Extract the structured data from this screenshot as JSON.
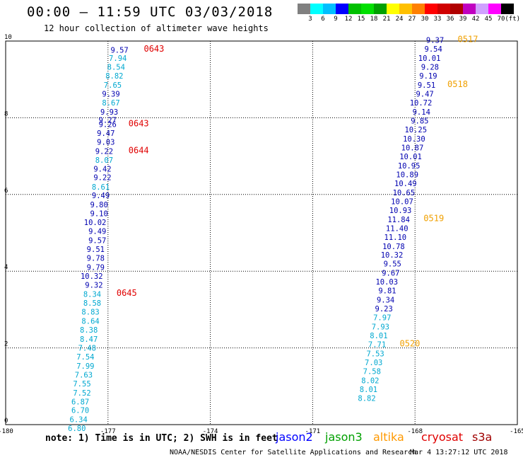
{
  "header": {
    "title": "00:00 — 11:59 UTC 03/03/2018",
    "subtitle": "12 hour collection of altimeter wave heights"
  },
  "colorbar": {
    "colors": [
      "#808080",
      "#00ffff",
      "#00bfff",
      "#0000ff",
      "#00c000",
      "#00e000",
      "#00a000",
      "#ffff00",
      "#ffc000",
      "#ff8000",
      "#ff0000",
      "#d00000",
      "#b00000",
      "#c000c0",
      "#d0a0ff",
      "#ff00ff",
      "#000000"
    ],
    "labels": [
      "3",
      "6",
      "9",
      "12",
      "15",
      "18",
      "21",
      "24",
      "27",
      "30",
      "33",
      "36",
      "39",
      "42",
      "45",
      "70"
    ],
    "unit": "(ft)"
  },
  "colors": {
    "dark_blue": "#0000b0",
    "light_blue": "#00a8d0",
    "time_red": "#e00000",
    "time_orange": "#f0a000"
  },
  "chart_data": {
    "type": "scatter",
    "title": "00:00 — 11:59 UTC 03/03/2018",
    "subtitle": "12 hour collection of altimeter wave heights",
    "xlim": [
      -180,
      -165
    ],
    "ylim": [
      0,
      10
    ],
    "x_ticks": [
      "-180",
      "-177",
      "-174",
      "-171",
      "-168",
      "-165"
    ],
    "y_ticks": [
      "0",
      "2",
      "4",
      "6",
      "8",
      "10"
    ],
    "grid": true,
    "tracks": [
      {
        "satellite": "jason2",
        "points": [
          {
            "lon": -176.4,
            "lat": 9.7,
            "value": "9.57",
            "band": "d"
          },
          {
            "lon": -176.45,
            "lat": 9.48,
            "value": "7.94",
            "band": "l"
          },
          {
            "lon": -176.5,
            "lat": 9.25,
            "value": "8.54",
            "band": "l"
          },
          {
            "lon": -176.55,
            "lat": 9.02,
            "value": "8.82",
            "band": "l"
          },
          {
            "lon": -176.6,
            "lat": 8.78,
            "value": "7.65",
            "band": "l"
          },
          {
            "lon": -176.65,
            "lat": 8.55,
            "value": "9.39",
            "band": "d"
          },
          {
            "lon": -176.65,
            "lat": 8.32,
            "value": "8.67",
            "band": "l"
          },
          {
            "lon": -176.7,
            "lat": 8.08,
            "value": "9.93",
            "band": "d"
          },
          {
            "lon": -176.75,
            "lat": 7.87,
            "value": "9.27",
            "band": "d"
          },
          {
            "lon": -176.75,
            "lat": 7.76,
            "value": "9.26",
            "band": "d"
          },
          {
            "lon": -176.8,
            "lat": 7.53,
            "value": "9.47",
            "band": "d"
          },
          {
            "lon": -176.8,
            "lat": 7.3,
            "value": "9.03",
            "band": "d"
          },
          {
            "lon": -176.85,
            "lat": 7.06,
            "value": "9.22",
            "band": "d"
          },
          {
            "lon": -176.85,
            "lat": 6.83,
            "value": "8.07",
            "band": "l"
          },
          {
            "lon": -176.9,
            "lat": 6.6,
            "value": "9.42",
            "band": "d"
          },
          {
            "lon": -176.9,
            "lat": 6.37,
            "value": "9.22",
            "band": "d"
          },
          {
            "lon": -176.95,
            "lat": 6.13,
            "value": "8.61",
            "band": "l"
          },
          {
            "lon": -176.95,
            "lat": 5.9,
            "value": "9.49",
            "band": "d"
          },
          {
            "lon": -177.0,
            "lat": 5.66,
            "value": "9.80",
            "band": "d"
          },
          {
            "lon": -177.0,
            "lat": 5.43,
            "value": "9.10",
            "band": "d"
          },
          {
            "lon": -177.05,
            "lat": 5.2,
            "value": "10.02",
            "band": "d"
          },
          {
            "lon": -177.05,
            "lat": 4.97,
            "value": "9.49",
            "band": "d"
          },
          {
            "lon": -177.05,
            "lat": 4.73,
            "value": "9.57",
            "band": "d"
          },
          {
            "lon": -177.1,
            "lat": 4.5,
            "value": "9.51",
            "band": "d"
          },
          {
            "lon": -177.1,
            "lat": 4.27,
            "value": "9.78",
            "band": "d"
          },
          {
            "lon": -177.1,
            "lat": 4.03,
            "value": "9.79",
            "band": "d"
          },
          {
            "lon": -177.15,
            "lat": 3.8,
            "value": "10.32",
            "band": "d"
          },
          {
            "lon": -177.15,
            "lat": 3.57,
            "value": "9.32",
            "band": "d"
          },
          {
            "lon": -177.2,
            "lat": 3.33,
            "value": "8.34",
            "band": "l"
          },
          {
            "lon": -177.2,
            "lat": 3.1,
            "value": "8.58",
            "band": "l"
          },
          {
            "lon": -177.25,
            "lat": 2.87,
            "value": "8.83",
            "band": "l"
          },
          {
            "lon": -177.25,
            "lat": 2.63,
            "value": "8.64",
            "band": "l"
          },
          {
            "lon": -177.3,
            "lat": 2.4,
            "value": "8.38",
            "band": "l"
          },
          {
            "lon": -177.3,
            "lat": 2.16,
            "value": "8.47",
            "band": "l"
          },
          {
            "lon": -177.35,
            "lat": 1.93,
            "value": "7.48",
            "band": "l"
          },
          {
            "lon": -177.4,
            "lat": 1.7,
            "value": "7.54",
            "band": "l"
          },
          {
            "lon": -177.4,
            "lat": 1.46,
            "value": "7.99",
            "band": "l"
          },
          {
            "lon": -177.45,
            "lat": 1.23,
            "value": "7.63",
            "band": "l"
          },
          {
            "lon": -177.5,
            "lat": 1.0,
            "value": "7.55",
            "band": "l"
          },
          {
            "lon": -177.5,
            "lat": 0.76,
            "value": "7.52",
            "band": "l"
          },
          {
            "lon": -177.55,
            "lat": 0.53,
            "value": "6.87",
            "band": "l"
          },
          {
            "lon": -177.55,
            "lat": 0.3,
            "value": "6.70",
            "band": "l"
          },
          {
            "lon": -177.6,
            "lat": 0.06,
            "value": "6.34",
            "band": "l"
          },
          {
            "lon": -177.65,
            "lat": -0.17,
            "value": "6.80",
            "band": "l"
          }
        ],
        "time_labels": [
          {
            "lon": -175.95,
            "lat": 9.72,
            "text": "0643"
          },
          {
            "lon": -176.4,
            "lat": 7.78,
            "text": "0643"
          },
          {
            "lon": -176.4,
            "lat": 7.08,
            "text": "0644"
          },
          {
            "lon": -176.75,
            "lat": 3.36,
            "text": "0645"
          }
        ]
      },
      {
        "satellite": "jason2",
        "points": [
          {
            "lon": -167.15,
            "lat": 9.95,
            "value": "9.37",
            "band": "d"
          },
          {
            "lon": -167.2,
            "lat": 9.72,
            "value": "9.54",
            "band": "d"
          },
          {
            "lon": -167.25,
            "lat": 9.48,
            "value": "10.01",
            "band": "d"
          },
          {
            "lon": -167.3,
            "lat": 9.25,
            "value": "9.28",
            "band": "d"
          },
          {
            "lon": -167.35,
            "lat": 9.02,
            "value": "9.19",
            "band": "d"
          },
          {
            "lon": -167.4,
            "lat": 8.78,
            "value": "9.51",
            "band": "d"
          },
          {
            "lon": -167.45,
            "lat": 8.55,
            "value": "9.47",
            "band": "d"
          },
          {
            "lon": -167.5,
            "lat": 8.32,
            "value": "10.72",
            "band": "d"
          },
          {
            "lon": -167.55,
            "lat": 8.08,
            "value": "9.14",
            "band": "d"
          },
          {
            "lon": -167.6,
            "lat": 7.85,
            "value": "9.85",
            "band": "d"
          },
          {
            "lon": -167.65,
            "lat": 7.62,
            "value": "10.25",
            "band": "d"
          },
          {
            "lon": -167.7,
            "lat": 7.38,
            "value": "10.30",
            "band": "d"
          },
          {
            "lon": -167.75,
            "lat": 7.15,
            "value": "10.87",
            "band": "d"
          },
          {
            "lon": -167.8,
            "lat": 6.92,
            "value": "10.01",
            "band": "d"
          },
          {
            "lon": -167.85,
            "lat": 6.68,
            "value": "10.95",
            "band": "d"
          },
          {
            "lon": -167.9,
            "lat": 6.45,
            "value": "10.89",
            "band": "d"
          },
          {
            "lon": -167.95,
            "lat": 6.22,
            "value": "10.49",
            "band": "d"
          },
          {
            "lon": -168.0,
            "lat": 5.98,
            "value": "10.65",
            "band": "d"
          },
          {
            "lon": -168.05,
            "lat": 5.75,
            "value": "10.07",
            "band": "d"
          },
          {
            "lon": -168.1,
            "lat": 5.52,
            "value": "10.93",
            "band": "d"
          },
          {
            "lon": -168.15,
            "lat": 5.28,
            "value": "11.84",
            "band": "d"
          },
          {
            "lon": -168.2,
            "lat": 5.05,
            "value": "11.40",
            "band": "d"
          },
          {
            "lon": -168.25,
            "lat": 4.82,
            "value": "11.10",
            "band": "d"
          },
          {
            "lon": -168.3,
            "lat": 4.58,
            "value": "10.78",
            "band": "d"
          },
          {
            "lon": -168.35,
            "lat": 4.35,
            "value": "10.32",
            "band": "d"
          },
          {
            "lon": -168.4,
            "lat": 4.12,
            "value": "9.55",
            "band": "d"
          },
          {
            "lon": -168.45,
            "lat": 3.88,
            "value": "9.67",
            "band": "d"
          },
          {
            "lon": -168.5,
            "lat": 3.65,
            "value": "10.03",
            "band": "d"
          },
          {
            "lon": -168.55,
            "lat": 3.42,
            "value": "9.81",
            "band": "d"
          },
          {
            "lon": -168.6,
            "lat": 3.18,
            "value": "9.34",
            "band": "d"
          },
          {
            "lon": -168.65,
            "lat": 2.95,
            "value": "9.23",
            "band": "d"
          },
          {
            "lon": -168.7,
            "lat": 2.72,
            "value": "7.97",
            "band": "l"
          },
          {
            "lon": -168.75,
            "lat": 2.48,
            "value": "7.93",
            "band": "l"
          },
          {
            "lon": -168.8,
            "lat": 2.25,
            "value": "8.01",
            "band": "l"
          },
          {
            "lon": -168.85,
            "lat": 2.02,
            "value": "7.71",
            "band": "l"
          },
          {
            "lon": -168.9,
            "lat": 1.78,
            "value": "7.53",
            "band": "l"
          },
          {
            "lon": -168.95,
            "lat": 1.55,
            "value": "7.03",
            "band": "l"
          },
          {
            "lon": -169.0,
            "lat": 1.32,
            "value": "7.58",
            "band": "l"
          },
          {
            "lon": -169.05,
            "lat": 1.08,
            "value": "8.02",
            "band": "l"
          },
          {
            "lon": -169.1,
            "lat": 0.85,
            "value": "8.01",
            "band": "l"
          },
          {
            "lon": -169.15,
            "lat": 0.62,
            "value": "8.82",
            "band": "l"
          }
        ],
        "time_labels": [
          {
            "lon": -166.75,
            "lat": 9.97,
            "text": "0517"
          },
          {
            "lon": -167.05,
            "lat": 8.8,
            "text": "0518"
          },
          {
            "lon": -167.75,
            "lat": 5.3,
            "text": "0519"
          },
          {
            "lon": -168.45,
            "lat": 2.04,
            "text": "0520"
          }
        ]
      }
    ]
  },
  "footer": {
    "note": "note: 1) Time is in UTC; 2) SWH is in feet",
    "legend": [
      {
        "name": "jason2",
        "color": "#0000ff"
      },
      {
        "name": "jason3",
        "color": "#00a000"
      },
      {
        "name": "altika",
        "color": "#ff9900"
      },
      {
        "name": "cryosat",
        "color": "#e00000"
      },
      {
        "name": "s3a",
        "color": "#a00000"
      }
    ],
    "credit": "NOAA/NESDIS Center for Satellite Applications and Research",
    "timestamp": "Mar  4 13:27:12 UTC 2018"
  }
}
